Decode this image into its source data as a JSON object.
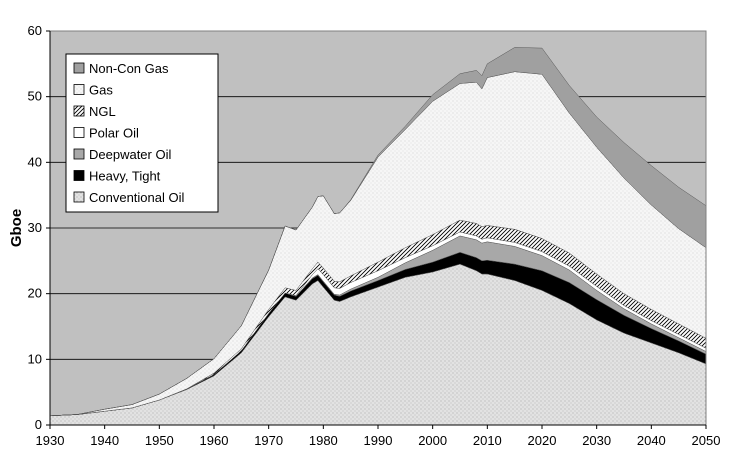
{
  "chart_data": {
    "type": "area",
    "stacked": true,
    "title": "",
    "xlabel": "",
    "ylabel": "Gboe",
    "xlim": [
      1930,
      2050
    ],
    "ylim": [
      0,
      60
    ],
    "x_ticks": [
      1930,
      1940,
      1950,
      1960,
      1970,
      1980,
      1990,
      2000,
      2010,
      2020,
      2030,
      2040,
      2050
    ],
    "y_ticks": [
      0,
      10,
      20,
      30,
      40,
      50,
      60
    ],
    "grid": "horizontal",
    "plot_background": "#c0c0c0",
    "legend_position": "top-left",
    "x": [
      1930,
      1935,
      1940,
      1945,
      1950,
      1955,
      1960,
      1965,
      1970,
      1973,
      1975,
      1978,
      1979,
      1980,
      1982,
      1983,
      1985,
      1990,
      1995,
      2000,
      2005,
      2008,
      2009,
      2010,
      2015,
      2020,
      2025,
      2030,
      2035,
      2040,
      2045,
      2050
    ],
    "series": [
      {
        "name": "Conventional  Oil",
        "color": "#e0e0e0",
        "pattern": "dots",
        "values": [
          1.4,
          1.6,
          2.1,
          2.6,
          3.8,
          5.4,
          7.5,
          11,
          16.5,
          19.5,
          19,
          21.5,
          22,
          21,
          19,
          18.8,
          19.5,
          21,
          22.5,
          23.3,
          24.5,
          23.5,
          23,
          23,
          22,
          20.5,
          18.5,
          16,
          14,
          12.5,
          11,
          9.3
        ]
      },
      {
        "name": "Heavy, Tight",
        "color": "#000000",
        "pattern": "solid",
        "values": [
          0,
          0,
          0,
          0,
          0,
          0.1,
          0.2,
          0.3,
          0.5,
          0.6,
          0.6,
          0.8,
          0.8,
          0.8,
          0.8,
          0.8,
          0.9,
          1,
          1.2,
          1.5,
          1.8,
          2,
          2,
          2.1,
          2.5,
          3,
          3.2,
          3.1,
          2.7,
          2.2,
          1.8,
          1.5
        ]
      },
      {
        "name": "Deepwater Oil",
        "color": "#a8a8a8",
        "pattern": "solid",
        "values": [
          0,
          0,
          0,
          0,
          0,
          0,
          0,
          0,
          0,
          0,
          0,
          0.1,
          0.1,
          0.1,
          0.1,
          0.2,
          0.3,
          0.5,
          1,
          1.8,
          2.5,
          2.7,
          2.7,
          2.8,
          2.7,
          2.3,
          1.9,
          1.4,
          1,
          0.7,
          0.5,
          0.4
        ]
      },
      {
        "name": "Polar Oil",
        "color": "#ffffff",
        "pattern": "solid",
        "values": [
          0,
          0,
          0,
          0,
          0,
          0,
          0,
          0,
          0,
          0,
          0.1,
          0.5,
          0.9,
          1,
          1,
          1,
          1,
          1,
          0.8,
          0.7,
          0.6,
          0.6,
          0.6,
          0.6,
          0.6,
          0.6,
          0.6,
          0.6,
          0.5,
          0.5,
          0.5,
          0.5
        ]
      },
      {
        "name": "NGL",
        "color": "#ffffff",
        "pattern": "hatch",
        "values": [
          0,
          0,
          0,
          0,
          0,
          0,
          0.2,
          0.3,
          0.6,
          0.8,
          0.8,
          0.9,
          1,
          1,
          1,
          1,
          1,
          1.3,
          1.5,
          1.7,
          1.8,
          1.9,
          1.9,
          1.9,
          2,
          2,
          2,
          1.9,
          1.8,
          1.7,
          1.6,
          1.5
        ]
      },
      {
        "name": "Gas",
        "color": "#f4f4f4",
        "pattern": "dots",
        "values": [
          0,
          0,
          0.3,
          0.5,
          0.9,
          1.6,
          2.2,
          3.5,
          6,
          9.4,
          9.2,
          9.4,
          10,
          11,
          10.3,
          10.5,
          11.5,
          16,
          18,
          20.3,
          20.8,
          21.5,
          21,
          22.5,
          24,
          25,
          21.3,
          19.3,
          17.6,
          15.9,
          14.5,
          13.8
        ]
      },
      {
        "name": "Non-Con Gas",
        "color": "#a0a0a0",
        "pattern": "solid",
        "values": [
          0,
          0,
          0,
          0,
          0,
          0,
          0,
          0,
          0,
          0,
          0,
          0,
          0,
          0,
          0,
          0,
          0.1,
          0.3,
          0.5,
          1,
          1.5,
          1.8,
          2,
          2.1,
          3.7,
          4,
          4.2,
          4.6,
          5.4,
          6,
          6.3,
          6.4
        ]
      }
    ]
  }
}
